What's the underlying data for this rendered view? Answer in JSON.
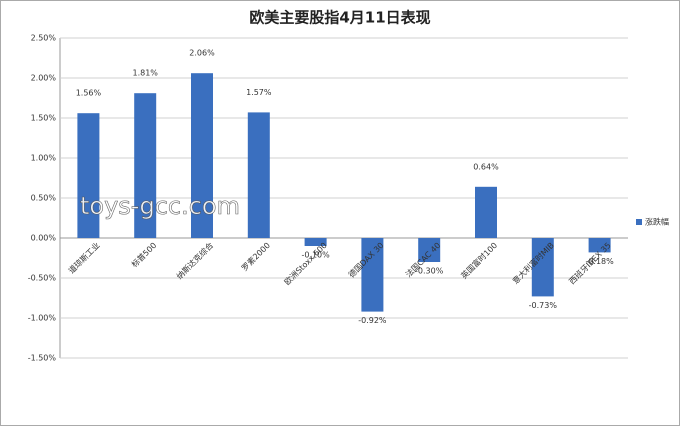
{
  "chart_data": {
    "type": "bar",
    "title": "欧美主要股指4月11日表现",
    "categories": [
      "道琼斯工业",
      "标普500",
      "纳斯达克综合",
      "罗素2000",
      "欧洲Stoxx 600",
      "德国DAX 30",
      "法国CAC 40",
      "英国富时100",
      "意大利富时MIB",
      "西班牙IBEX 35"
    ],
    "series": [
      {
        "name": "涨跌幅",
        "color": "#3a6fbf",
        "values": [
          1.56,
          1.81,
          2.06,
          1.57,
          -0.1,
          -0.92,
          -0.3,
          0.64,
          -0.73,
          -0.18
        ],
        "value_labels": [
          "1.56%",
          "1.81%",
          "2.06%",
          "1.57%",
          "-0.10%",
          "-0.92%",
          "-0.30%",
          "0.64%",
          "-0.73%",
          "-0.18%"
        ]
      }
    ],
    "ylim": [
      -1.5,
      2.5
    ],
    "yticks": [
      {
        "value": -1.5,
        "label": "-1.50%"
      },
      {
        "value": -1.0,
        "label": "-1.00%"
      },
      {
        "value": -0.5,
        "label": "-0.50%"
      },
      {
        "value": 0,
        "label": "0.00%"
      },
      {
        "value": 0.5,
        "label": "0.50%"
      },
      {
        "value": 1.0,
        "label": "1.00%"
      },
      {
        "value": 1.5,
        "label": "1.50%"
      },
      {
        "value": 2.0,
        "label": "2.00%"
      },
      {
        "value": 2.5,
        "label": "2.50%"
      }
    ],
    "grid": true,
    "legend": "right",
    "watermark": "toys-gcc.com"
  }
}
